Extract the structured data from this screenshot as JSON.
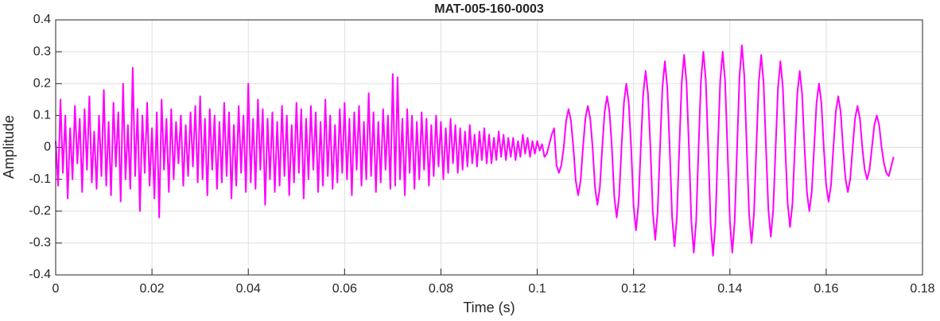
{
  "chart_data": {
    "type": "line",
    "title": "MAT-005-160-0003",
    "xlabel": "Time (s)",
    "ylabel": "Amplitude",
    "xlim": [
      0,
      0.18
    ],
    "xticks": [
      0,
      0.02,
      0.04,
      0.06,
      0.08,
      0.1,
      0.12,
      0.14,
      0.16,
      0.18
    ],
    "ylim": [
      -0.4,
      0.4
    ],
    "yticks": [
      -0.4,
      -0.3,
      -0.2,
      -0.1,
      0,
      0.1,
      0.2,
      0.3,
      0.4
    ],
    "grid": true,
    "x": [
      0,
      0.0005,
      0.001,
      0.0015,
      0.002,
      0.0025,
      0.003,
      0.0035,
      0.004,
      0.0045,
      0.005,
      0.0055,
      0.006,
      0.0065,
      0.007,
      0.0075,
      0.008,
      0.0085,
      0.009,
      0.0095,
      0.01,
      0.0105,
      0.011,
      0.0115,
      0.012,
      0.0125,
      0.013,
      0.0135,
      0.014,
      0.0145,
      0.015,
      0.0155,
      0.016,
      0.0165,
      0.017,
      0.0175,
      0.018,
      0.0185,
      0.019,
      0.0195,
      0.02,
      0.0205,
      0.021,
      0.0215,
      0.022,
      0.0225,
      0.023,
      0.0235,
      0.024,
      0.0245,
      0.025,
      0.0255,
      0.026,
      0.0265,
      0.027,
      0.0275,
      0.028,
      0.0285,
      0.029,
      0.0295,
      0.03,
      0.0305,
      0.031,
      0.0315,
      0.032,
      0.0325,
      0.033,
      0.0335,
      0.034,
      0.0345,
      0.035,
      0.0355,
      0.036,
      0.0365,
      0.037,
      0.0375,
      0.038,
      0.0385,
      0.039,
      0.0395,
      0.04,
      0.0405,
      0.041,
      0.0415,
      0.042,
      0.0425,
      0.043,
      0.0435,
      0.044,
      0.0445,
      0.045,
      0.0455,
      0.046,
      0.0465,
      0.047,
      0.0475,
      0.048,
      0.0485,
      0.049,
      0.0495,
      0.05,
      0.0505,
      0.051,
      0.0515,
      0.052,
      0.0525,
      0.053,
      0.0535,
      0.054,
      0.0545,
      0.055,
      0.0555,
      0.056,
      0.0565,
      0.057,
      0.0575,
      0.058,
      0.0585,
      0.059,
      0.0595,
      0.06,
      0.0605,
      0.061,
      0.0615,
      0.062,
      0.0625,
      0.063,
      0.0635,
      0.064,
      0.0645,
      0.065,
      0.0655,
      0.066,
      0.0665,
      0.067,
      0.0675,
      0.068,
      0.0685,
      0.069,
      0.0695,
      0.07,
      0.0705,
      0.071,
      0.0715,
      0.072,
      0.0725,
      0.073,
      0.0735,
      0.074,
      0.0745,
      0.075,
      0.0755,
      0.076,
      0.0765,
      0.077,
      0.0775,
      0.078,
      0.0785,
      0.079,
      0.0795,
      0.08,
      0.0805,
      0.081,
      0.0815,
      0.082,
      0.0825,
      0.083,
      0.0835,
      0.084,
      0.0845,
      0.085,
      0.0855,
      0.086,
      0.0865,
      0.087,
      0.0875,
      0.088,
      0.0885,
      0.089,
      0.0895,
      0.09,
      0.0905,
      0.091,
      0.0915,
      0.092,
      0.0925,
      0.093,
      0.0935,
      0.094,
      0.0945,
      0.095,
      0.0955,
      0.096,
      0.0965,
      0.097,
      0.0975,
      0.098,
      0.0985,
      0.099,
      0.0995,
      0.1,
      0.1005,
      0.101,
      0.1015,
      0.102,
      0.1025,
      0.103,
      0.1035,
      0.104,
      0.1045,
      0.105,
      0.1055,
      0.106,
      0.1065,
      0.107,
      0.1075,
      0.108,
      0.1085,
      0.109,
      0.1095,
      0.11,
      0.1105,
      0.111,
      0.1115,
      0.112,
      0.1125,
      0.113,
      0.1135,
      0.114,
      0.1145,
      0.115,
      0.1155,
      0.116,
      0.1165,
      0.117,
      0.1175,
      0.118,
      0.1185,
      0.119,
      0.1195,
      0.12,
      0.1205,
      0.121,
      0.1215,
      0.122,
      0.1225,
      0.123,
      0.1235,
      0.124,
      0.1245,
      0.125,
      0.1255,
      0.126,
      0.1265,
      0.127,
      0.1275,
      0.128,
      0.1285,
      0.129,
      0.1295,
      0.13,
      0.1305,
      0.131,
      0.1315,
      0.132,
      0.1325,
      0.133,
      0.1335,
      0.134,
      0.1345,
      0.135,
      0.1355,
      0.136,
      0.1365,
      0.137,
      0.1375,
      0.138,
      0.1385,
      0.139,
      0.1395,
      0.14,
      0.1405,
      0.141,
      0.1415,
      0.142,
      0.1425,
      0.143,
      0.1435,
      0.144,
      0.1445,
      0.145,
      0.1455,
      0.146,
      0.1465,
      0.147,
      0.1475,
      0.148,
      0.1485,
      0.149,
      0.1495,
      0.15,
      0.1505,
      0.151,
      0.1515,
      0.152,
      0.1525,
      0.153,
      0.1535,
      0.154,
      0.1545,
      0.155,
      0.1555,
      0.156,
      0.1565,
      0.157,
      0.1575,
      0.158,
      0.1585,
      0.159,
      0.1595,
      0.16,
      0.1605,
      0.161,
      0.1615,
      0.162,
      0.1625,
      0.163,
      0.1635,
      0.164,
      0.1645,
      0.165,
      0.1655,
      0.166,
      0.1665,
      0.167,
      0.1675,
      0.168,
      0.1685,
      0.169,
      0.1695,
      0.17,
      0.1705,
      0.171,
      0.1715,
      0.172,
      0.1725,
      0.173,
      0.1735,
      0.174
    ],
    "series": [
      {
        "color": "#ff00ff",
        "values": [
          0.02,
          -0.12,
          0.15,
          -0.08,
          0.1,
          -0.16,
          0.06,
          -0.1,
          0.13,
          -0.05,
          0.09,
          -0.14,
          0.12,
          -0.07,
          0.16,
          -0.11,
          0.05,
          -0.13,
          0.1,
          -0.09,
          0.18,
          -0.12,
          0.08,
          -0.15,
          0.14,
          -0.06,
          0.11,
          -0.17,
          0.2,
          -0.1,
          0.07,
          -0.13,
          0.25,
          -0.09,
          0.12,
          -0.2,
          0.1,
          -0.08,
          0.14,
          -0.12,
          0.06,
          -0.16,
          0.11,
          -0.22,
          0.15,
          -0.07,
          0.09,
          -0.14,
          0.12,
          -0.1,
          0.08,
          -0.05,
          0.1,
          -0.12,
          0.07,
          -0.09,
          0.11,
          -0.06,
          0.13,
          -0.11,
          0.16,
          -0.1,
          0.09,
          -0.15,
          0.12,
          -0.07,
          0.1,
          -0.13,
          0.08,
          -0.11,
          0.14,
          -0.09,
          0.11,
          -0.16,
          0.07,
          -0.12,
          0.13,
          -0.08,
          0.1,
          -0.14,
          0.2,
          -0.11,
          0.09,
          -0.13,
          0.15,
          -0.07,
          0.12,
          -0.18,
          0.09,
          -0.1,
          0.11,
          -0.14,
          0.08,
          -0.12,
          0.13,
          -0.09,
          0.1,
          -0.15,
          0.07,
          -0.11,
          0.14,
          -0.08,
          0.12,
          -0.16,
          0.09,
          -0.1,
          0.13,
          -0.07,
          0.11,
          -0.14,
          0.08,
          -0.12,
          0.15,
          -0.09,
          0.1,
          -0.13,
          0.07,
          -0.11,
          0.12,
          -0.08,
          0.14,
          -0.1,
          0.09,
          -0.15,
          0.11,
          -0.07,
          0.13,
          -0.12,
          0.08,
          -0.1,
          0.17,
          -0.09,
          0.11,
          -0.14,
          0.08,
          -0.11,
          0.12,
          -0.07,
          0.1,
          -0.13,
          0.23,
          -0.12,
          0.22,
          -0.1,
          0.09,
          -0.15,
          0.12,
          -0.08,
          0.1,
          -0.13,
          0.08,
          -0.1,
          0.11,
          -0.07,
          0.09,
          -0.12,
          0.07,
          -0.09,
          0.1,
          -0.06,
          0.08,
          -0.1,
          0.06,
          -0.08,
          0.09,
          -0.05,
          0.07,
          -0.08,
          0.06,
          -0.07,
          0.05,
          -0.06,
          0.07,
          -0.05,
          0.04,
          -0.06,
          0.05,
          -0.04,
          0.06,
          -0.05,
          0.04,
          -0.05,
          0.03,
          -0.04,
          0.05,
          -0.03,
          0.04,
          -0.04,
          0.03,
          -0.03,
          0.03,
          -0.04,
          0.02,
          -0.03,
          0.04,
          -0.02,
          0.03,
          -0.03,
          0.02,
          -0.02,
          0.02,
          -0.01,
          0.01,
          -0.03,
          -0.02,
          0.01,
          0.04,
          0.06,
          -0.056,
          -0.08,
          -0.056,
          0,
          0.084,
          0.12,
          0.084,
          0,
          -0.105,
          -0.15,
          -0.105,
          0,
          0.091,
          0.13,
          0.091,
          0,
          -0.126,
          -0.18,
          -0.126,
          0,
          0.112,
          0.16,
          0.112,
          0,
          -0.154,
          -0.22,
          -0.154,
          0,
          0.14,
          0.2,
          0.14,
          0,
          -0.182,
          -0.26,
          -0.182,
          0,
          0.168,
          0.24,
          0.168,
          0,
          -0.203,
          -0.29,
          -0.203,
          0,
          0.189,
          0.27,
          0.189,
          0,
          -0.217,
          -0.31,
          -0.217,
          0,
          0.203,
          0.29,
          0.203,
          0,
          -0.231,
          -0.33,
          -0.231,
          0,
          0.21,
          0.3,
          0.21,
          0,
          -0.238,
          -0.34,
          -0.238,
          0,
          0.21,
          0.3,
          0.21,
          0,
          -0.231,
          -0.33,
          -0.231,
          0,
          0.224,
          0.32,
          0.224,
          0,
          -0.21,
          -0.3,
          -0.21,
          0,
          0.203,
          0.29,
          0.203,
          0,
          -0.196,
          -0.28,
          -0.196,
          0,
          0.189,
          0.27,
          0.189,
          0,
          -0.175,
          -0.25,
          -0.175,
          0,
          0.168,
          0.24,
          0.168,
          0,
          -0.14,
          -0.2,
          -0.14,
          0,
          0.14,
          0.2,
          0.14,
          0,
          -0.119,
          -0.17,
          -0.119,
          0,
          0.112,
          0.16,
          0.112,
          0,
          -0.098,
          -0.14,
          -0.098,
          0,
          0.091,
          0.13,
          0.091,
          0,
          -0.07,
          -0.1,
          -0.07,
          0,
          0.07,
          0.1,
          0.07,
          0,
          -0.05,
          -0.08,
          -0.09,
          -0.06,
          -0.03
        ]
      }
    ]
  }
}
